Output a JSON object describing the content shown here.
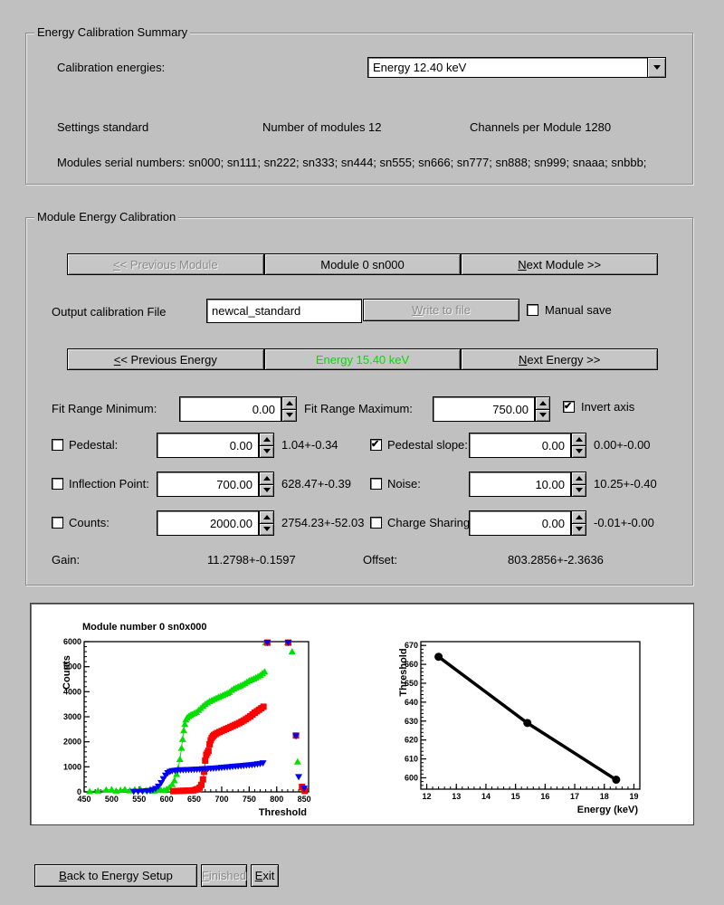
{
  "summary": {
    "title": "Energy Calibration Summary",
    "calibration_energies_label": "Calibration energies:",
    "energy_dropdown_value": "Energy 12.40 keV",
    "settings": "Settings standard",
    "num_modules": "Number of modules 12",
    "channels_per_module": "Channels per Module 1280",
    "serials": "Modules serial numbers: sn000; sn111; sn222; sn333; sn444; sn555; sn666; sn777; sn888; sn999; snaaa; snbbb;"
  },
  "module_cal": {
    "title": "Module Energy Calibration",
    "prev_module_u": "<",
    "prev_module_rest": "< Previous Module",
    "module_label": "Module 0 sn000",
    "next_module_u": "N",
    "next_module_rest": "ext Module >>",
    "output_file_label": "Output calibration File",
    "output_file_value": "newcal_standard",
    "write_u": "W",
    "write_rest": "rite to file",
    "manual_save_label": "Manual save",
    "manual_save_checked": false,
    "prev_energy_u": "<",
    "prev_energy_rest": "< Previous Energy",
    "current_energy": "Energy 15.40 keV",
    "current_energy_color": "#00e000",
    "next_energy_u": "N",
    "next_energy_rest": "ext Energy >>",
    "fit_min_label": "Fit Range Minimum:",
    "fit_min_value": "0.00",
    "fit_max_label": "Fit Range Maximum:",
    "fit_max_value": "750.00",
    "invert_axis_label": "Invert axis",
    "invert_axis_checked": true,
    "params_left": [
      {
        "label": "Pedestal:",
        "value": "0.00",
        "result": "1.04+-0.34",
        "checked": false
      },
      {
        "label": "Inflection Point:",
        "value": "700.00",
        "result": "628.47+-0.39",
        "checked": false
      },
      {
        "label": "Counts:",
        "value": "2000.00",
        "result": "2754.23+-52.03",
        "checked": false
      }
    ],
    "params_right": [
      {
        "label": "Pedestal slope:",
        "value": "0.00",
        "result": "0.00+-0.00",
        "checked": true
      },
      {
        "label": "Noise:",
        "value": "10.00",
        "result": "10.25+-0.40",
        "checked": false
      },
      {
        "label": "Charge Sharing",
        "value": "0.00",
        "result": "-0.01+-0.00",
        "checked": false
      }
    ],
    "gain_label": "Gain:",
    "gain_value": "11.2798+-0.1597",
    "offset_label": "Offset:",
    "offset_value": "803.2856+-2.3636"
  },
  "footer": {
    "back_u": "B",
    "back_rest": "ack to Energy Setup",
    "finished_u": "F",
    "finished_rest": "inished",
    "exit_u": "E",
    "exit_rest": "xit"
  },
  "chart_data": [
    {
      "type": "scatter",
      "title": "Module number 0 sn0x000",
      "xlabel": "Threshold",
      "ylabel": "Counts",
      "xlim": [
        450,
        858
      ],
      "ylim": [
        0,
        6000
      ],
      "xticks": [
        450,
        500,
        550,
        600,
        650,
        700,
        750,
        800,
        850
      ],
      "yticks": [
        0,
        1000,
        2000,
        3000,
        4000,
        5000,
        6000
      ],
      "xminor": 10,
      "yminor": 200,
      "grid": false,
      "legend": "none",
      "series": [
        {
          "name": "threshold-scan-green",
          "color": "#00e000",
          "marker": "triangle-up",
          "line": true,
          "points": [
            [
              460,
              20
            ],
            [
              475,
              40
            ],
            [
              490,
              80
            ],
            [
              500,
              90
            ],
            [
              508,
              40
            ],
            [
              516,
              70
            ],
            [
              524,
              100
            ],
            [
              533,
              50
            ],
            [
              542,
              90
            ],
            [
              552,
              110
            ],
            [
              562,
              60
            ],
            [
              570,
              100
            ],
            [
              577,
              40
            ],
            [
              583,
              70
            ],
            [
              589,
              90
            ],
            [
              595,
              60
            ],
            [
              600,
              110
            ],
            [
              605,
              180
            ],
            [
              610,
              300
            ],
            [
              614,
              450
            ],
            [
              618,
              700
            ],
            [
              621,
              950
            ],
            [
              624,
              1300
            ],
            [
              627,
              1750
            ],
            [
              629,
              2100
            ],
            [
              631,
              2450
            ],
            [
              633,
              2700
            ],
            [
              635,
              2880
            ],
            [
              637,
              2960
            ],
            [
              640,
              3020
            ],
            [
              643,
              3060
            ],
            [
              646,
              3100
            ],
            [
              650,
              3140
            ],
            [
              654,
              3180
            ],
            [
              658,
              3260
            ],
            [
              662,
              3340
            ],
            [
              666,
              3430
            ],
            [
              670,
              3500
            ],
            [
              674,
              3560
            ],
            [
              678,
              3620
            ],
            [
              682,
              3660
            ],
            [
              686,
              3700
            ],
            [
              690,
              3740
            ],
            [
              694,
              3780
            ],
            [
              698,
              3820
            ],
            [
              702,
              3860
            ],
            [
              706,
              3900
            ],
            [
              710,
              3940
            ],
            [
              714,
              3980
            ],
            [
              718,
              4060
            ],
            [
              722,
              4120
            ],
            [
              726,
              4160
            ],
            [
              730,
              4200
            ],
            [
              734,
              4240
            ],
            [
              738,
              4280
            ],
            [
              742,
              4330
            ],
            [
              746,
              4390
            ],
            [
              750,
              4440
            ],
            [
              754,
              4480
            ],
            [
              758,
              4520
            ],
            [
              762,
              4560
            ],
            [
              766,
              4610
            ],
            [
              770,
              4660
            ],
            [
              774,
              4730
            ],
            [
              778,
              4800
            ]
          ]
        },
        {
          "name": "threshold-scan-red",
          "color": "#ff0000",
          "marker": "square",
          "line": true,
          "points": [
            [
              612,
              30
            ],
            [
              618,
              35
            ],
            [
              624,
              40
            ],
            [
              630,
              45
            ],
            [
              636,
              50
            ],
            [
              642,
              55
            ],
            [
              648,
              60
            ],
            [
              652,
              80
            ],
            [
              656,
              110
            ],
            [
              660,
              170
            ],
            [
              663,
              280
            ],
            [
              666,
              500
            ],
            [
              668,
              800
            ],
            [
              670,
              1250
            ],
            [
              672,
              1480
            ],
            [
              674,
              1560
            ],
            [
              676,
              1640
            ],
            [
              678,
              1900
            ],
            [
              680,
              2060
            ],
            [
              682,
              2160
            ],
            [
              684,
              2220
            ],
            [
              686,
              2270
            ],
            [
              689,
              2310
            ],
            [
              692,
              2350
            ],
            [
              696,
              2390
            ],
            [
              700,
              2430
            ],
            [
              704,
              2470
            ],
            [
              708,
              2510
            ],
            [
              712,
              2550
            ],
            [
              716,
              2590
            ],
            [
              720,
              2630
            ],
            [
              724,
              2670
            ],
            [
              728,
              2710
            ],
            [
              732,
              2750
            ],
            [
              736,
              2800
            ],
            [
              740,
              2850
            ],
            [
              744,
              2900
            ],
            [
              748,
              2960
            ],
            [
              752,
              3020
            ],
            [
              756,
              3090
            ],
            [
              760,
              3160
            ],
            [
              764,
              3220
            ],
            [
              768,
              3280
            ],
            [
              772,
              3340
            ],
            [
              776,
              3400
            ]
          ]
        },
        {
          "name": "threshold-scan-blue",
          "color": "#0000ee",
          "marker": "triangle-down",
          "line": true,
          "points": [
            [
              540,
              15
            ],
            [
              548,
              20
            ],
            [
              556,
              25
            ],
            [
              564,
              35
            ],
            [
              570,
              50
            ],
            [
              575,
              80
            ],
            [
              580,
              130
            ],
            [
              585,
              220
            ],
            [
              590,
              360
            ],
            [
              594,
              520
            ],
            [
              598,
              660
            ],
            [
              602,
              760
            ],
            [
              606,
              810
            ],
            [
              610,
              840
            ],
            [
              615,
              855
            ],
            [
              620,
              865
            ],
            [
              625,
              870
            ],
            [
              630,
              875
            ],
            [
              635,
              880
            ],
            [
              640,
              885
            ],
            [
              645,
              890
            ],
            [
              650,
              895
            ],
            [
              655,
              900
            ],
            [
              660,
              905
            ],
            [
              665,
              915
            ],
            [
              670,
              920
            ],
            [
              675,
              925
            ],
            [
              680,
              935
            ],
            [
              685,
              940
            ],
            [
              690,
              950
            ],
            [
              695,
              960
            ],
            [
              700,
              970
            ],
            [
              705,
              980
            ],
            [
              710,
              990
            ],
            [
              715,
              1000
            ],
            [
              720,
              1010
            ],
            [
              725,
              1020
            ],
            [
              730,
              1030
            ],
            [
              735,
              1040
            ],
            [
              740,
              1050
            ],
            [
              745,
              1060
            ],
            [
              750,
              1070
            ],
            [
              755,
              1080
            ],
            [
              760,
              1095
            ],
            [
              765,
              1110
            ],
            [
              770,
              1125
            ],
            [
              775,
              1150
            ]
          ]
        },
        {
          "name": "green-outliers",
          "color": "#00e000",
          "marker": "triangle-up",
          "line": false,
          "points": [
            [
              780,
              5960
            ],
            [
              820,
              5960
            ],
            [
              828,
              5600
            ],
            [
              838,
              1200
            ],
            [
              848,
              130
            ]
          ]
        },
        {
          "name": "red-outliers",
          "color": "#ff0000",
          "marker": "square",
          "line": false,
          "points": [
            [
              783,
              5960
            ],
            [
              821,
              5960
            ],
            [
              835,
              2250
            ],
            [
              846,
              200
            ],
            [
              851,
              40
            ]
          ]
        },
        {
          "name": "blue-outliers",
          "color": "#0000ee",
          "marker": "triangle-down",
          "line": false,
          "points": [
            [
              783,
              5960
            ],
            [
              821,
              5960
            ],
            [
              835,
              2230
            ],
            [
              840,
              600
            ],
            [
              850,
              140
            ]
          ]
        }
      ]
    },
    {
      "type": "line",
      "title": "",
      "xlabel": "Energy (keV)",
      "ylabel": "Threshold",
      "xlim": [
        11.8,
        19.2
      ],
      "ylim": [
        594,
        672
      ],
      "xticks": [
        12,
        13,
        14,
        15,
        16,
        17,
        18,
        19
      ],
      "yticks": [
        600,
        610,
        620,
        630,
        640,
        650,
        660,
        670
      ],
      "xminor": 0.2,
      "yminor": 2,
      "grid": false,
      "legend": "none",
      "series": [
        {
          "name": "threshold-vs-energy-fit",
          "color": "#000000",
          "marker": "circle",
          "line": true,
          "lineWidth": 3.5,
          "points": [
            [
              12.4,
              664
            ],
            [
              15.4,
              629
            ],
            [
              18.4,
              599
            ]
          ]
        }
      ]
    }
  ]
}
